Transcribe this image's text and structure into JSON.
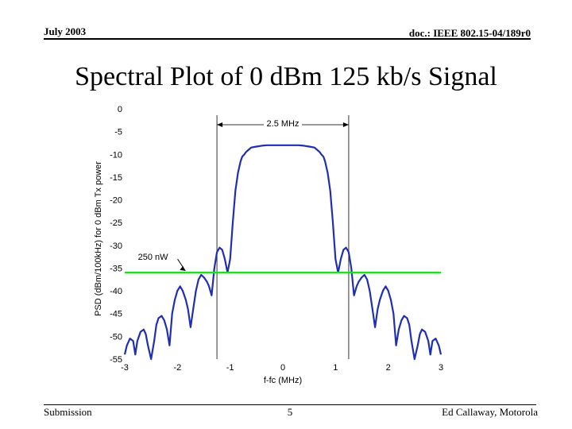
{
  "header": {
    "date": "July 2003",
    "doc": "doc.: IEEE 802.15-04/189r0"
  },
  "slide_title": "Spectral Plot of 0 dBm 125 kb/s Signal",
  "footer": {
    "left": "Submission",
    "page": "5",
    "right": "Ed Callaway, Motorola"
  },
  "chart_data": {
    "type": "line",
    "xlabel": "f-fc (MHz)",
    "ylabel": "PSD (dBm/100kHz) for 0 dBm Tx power",
    "xlim": [
      -3,
      3
    ],
    "ylim": [
      -55,
      0
    ],
    "xticks": [
      "-3",
      "-2",
      "-1",
      "0",
      "1",
      "2",
      "3"
    ],
    "yticks": [
      "0",
      "-5",
      "-10",
      "-15",
      "-20",
      "-25",
      "-30",
      "-35",
      "-40",
      "-45",
      "-50",
      "-55"
    ],
    "grid": false,
    "series": [
      {
        "color": "#1f2fb0",
        "x": [
          -3.0,
          -2.96,
          -2.9,
          -2.84,
          -2.8,
          -2.76,
          -2.7,
          -2.64,
          -2.6,
          -2.56,
          -2.5,
          -2.44,
          -2.4,
          -2.36,
          -2.3,
          -2.25,
          -2.2,
          -2.15,
          -2.1,
          -2.05,
          -2.0,
          -1.95,
          -1.9,
          -1.84,
          -1.8,
          -1.75,
          -1.7,
          -1.65,
          -1.6,
          -1.55,
          -1.5,
          -1.44,
          -1.4,
          -1.35,
          -1.3,
          -1.25,
          -1.2,
          -1.15,
          -1.1,
          -1.05,
          -1.0,
          -0.95,
          -0.9,
          -0.85,
          -0.8,
          -0.77,
          -0.73,
          -0.7,
          -0.65,
          -0.6,
          -0.5,
          -0.4,
          -0.3,
          -0.2,
          -0.1,
          0.0,
          0.1,
          0.2,
          0.3,
          0.4,
          0.5,
          0.6,
          0.65,
          0.7,
          0.73,
          0.77,
          0.8,
          0.85,
          0.9,
          0.95,
          1.0,
          1.05,
          1.1,
          1.15,
          1.2,
          1.25,
          1.3,
          1.35,
          1.4,
          1.44,
          1.5,
          1.55,
          1.6,
          1.65,
          1.7,
          1.75,
          1.8,
          1.84,
          1.9,
          1.95,
          2.0,
          2.05,
          2.1,
          2.15,
          2.2,
          2.25,
          2.3,
          2.36,
          2.4,
          2.44,
          2.5,
          2.56,
          2.6,
          2.64,
          2.7,
          2.76,
          2.8,
          2.84,
          2.9,
          2.96,
          3.0
        ],
        "y": [
          -54,
          -52,
          -50.5,
          -51,
          -54,
          -51,
          -49,
          -48.5,
          -49.5,
          -52,
          -55,
          -51,
          -47.5,
          -46,
          -45.5,
          -46.5,
          -48.5,
          -52,
          -45,
          -42,
          -40,
          -39,
          -40,
          -42,
          -44,
          -48,
          -44,
          -40,
          -37.5,
          -36.5,
          -37,
          -38,
          -39,
          -41,
          -35,
          -31.5,
          -30.5,
          -31,
          -33,
          -36,
          -33,
          -25,
          -18,
          -14,
          -11.5,
          -10.5,
          -10,
          -9.5,
          -9,
          -8.5,
          -8.3,
          -8.1,
          -8.0,
          -8.0,
          -8.0,
          -8.0,
          -8.0,
          -8.0,
          -8.0,
          -8.1,
          -8.3,
          -8.5,
          -9,
          -9.5,
          -10,
          -10.5,
          -11.5,
          -14,
          -18,
          -25,
          -33,
          -36,
          -33,
          -31,
          -30.5,
          -31.5,
          -35,
          -41,
          -39,
          -38,
          -37,
          -36.5,
          -37.5,
          -40,
          -44,
          -48,
          -44,
          -42,
          -40,
          -39,
          -40,
          -42,
          -45,
          -52,
          -48.5,
          -46.5,
          -45.5,
          -46,
          -47.5,
          -51,
          -55,
          -52,
          -49.5,
          -48.5,
          -49,
          -51,
          -54,
          -51,
          -50.5,
          -52,
          -54
        ]
      },
      {
        "color": "#22dd22",
        "x": [
          -3.0,
          3.0
        ],
        "y": [
          -36,
          -36
        ]
      }
    ],
    "annotations": {
      "bandwidth_label": "2.5 MHz",
      "bandwidth_x": [
        -1.25,
        1.25
      ],
      "bandwidth_y": -3.5,
      "threshold_label": "250 nW",
      "threshold_label_x": -2.75,
      "threshold_label_y": -32.5,
      "threshold_arrow_to_x": -1.85,
      "threshold_arrow_to_y": -35.6
    }
  }
}
